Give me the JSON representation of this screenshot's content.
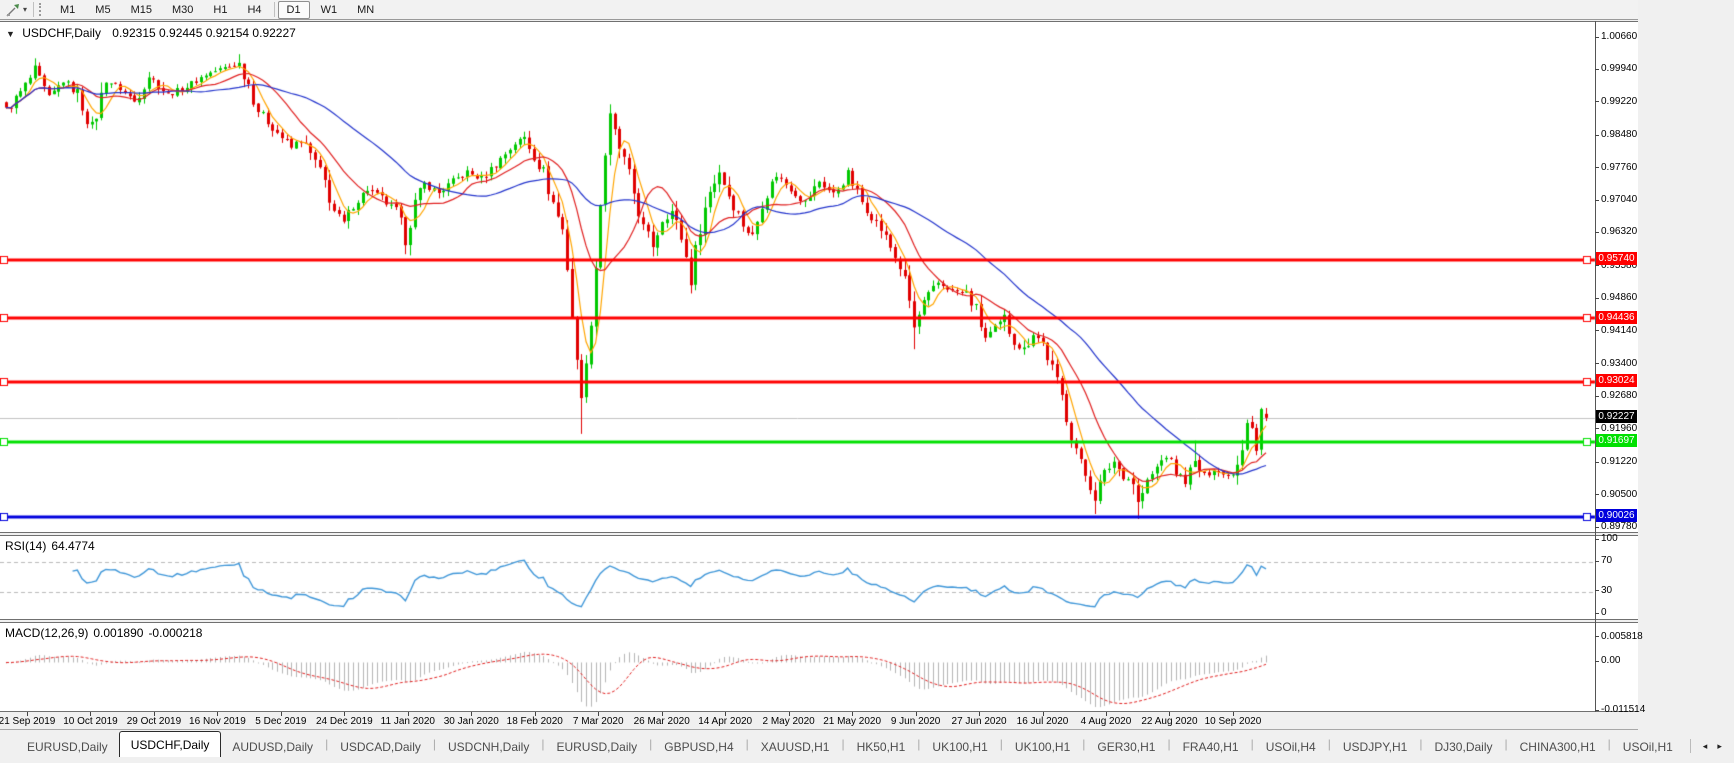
{
  "toolbar": {
    "periods": [
      "M1",
      "M5",
      "M15",
      "M30",
      "H1",
      "H4",
      "D1",
      "W1",
      "MN"
    ],
    "active_period": "D1",
    "separator_before": "D1"
  },
  "icons": {
    "dropdown_caret": "▾",
    "collapse_arrow": "▼",
    "tab_scroll_left": "◂",
    "tab_scroll_right": "▸"
  },
  "main_title": {
    "symbol": "USDCHF,Daily",
    "ohlc_text": "0.92315 0.92445 0.92154 0.92227"
  },
  "rsi_header": {
    "label": "RSI(14)",
    "value": "64.4774"
  },
  "macd_header": {
    "label": "MACD(12,26,9)",
    "value1": "0.001890",
    "value2": "-0.000218"
  },
  "tabs": {
    "items": [
      {
        "label": "EURUSD,Daily",
        "active": false
      },
      {
        "label": "USDCHF,Daily",
        "active": true
      },
      {
        "label": "AUDUSD,Daily",
        "active": false
      },
      {
        "label": "USDCAD,Daily",
        "active": false
      },
      {
        "label": "USDCNH,Daily",
        "active": false
      },
      {
        "label": "EURUSD,Daily",
        "active": false
      },
      {
        "label": "GBPUSD,H4",
        "active": false
      },
      {
        "label": "XAUUSD,H1",
        "active": false
      },
      {
        "label": "HK50,H1",
        "active": false
      },
      {
        "label": "UK100,H1",
        "active": false
      },
      {
        "label": "UK100,H1",
        "active": false
      },
      {
        "label": "GER30,H1",
        "active": false
      },
      {
        "label": "FRA40,H1",
        "active": false
      },
      {
        "label": "USOil,H4",
        "active": false
      },
      {
        "label": "USDJPY,H1",
        "active": false
      },
      {
        "label": "DJ30,Daily",
        "active": false
      },
      {
        "label": "CHINA300,H1",
        "active": false
      },
      {
        "label": "USOil,H1",
        "active": false
      }
    ]
  },
  "chart_data": [
    {
      "type": "candlestick",
      "title": "USDCHF,Daily",
      "ohlc_current": {
        "open": 0.92315,
        "high": 0.92445,
        "low": 0.92154,
        "close": 0.92227
      },
      "ylim": [
        0.8978,
        1.0066
      ],
      "y_ticks": [
        "1.00660",
        "0.99940",
        "0.99220",
        "0.98480",
        "0.97760",
        "0.97040",
        "0.96320",
        "0.95580",
        "0.94860",
        "0.94140",
        "0.93400",
        "0.92680",
        "0.91960",
        "0.91220",
        "0.90500",
        "0.89780"
      ],
      "x_tick_labels": [
        "21 Sep 2019",
        "10 Oct 2019",
        "29 Oct 2019",
        "16 Nov 2019",
        "5 Dec 2019",
        "24 Dec 2019",
        "11 Jan 2020",
        "30 Jan 2020",
        "18 Feb 2020",
        "7 Mar 2020",
        "26 Mar 2020",
        "14 Apr 2020",
        "2 May 2020",
        "21 May 2020",
        "9 Jun 2020",
        "27 Jun 2020",
        "16 Jul 2020",
        "4 Aug 2020",
        "22 Aug 2020",
        "10 Sep 2020"
      ],
      "bars_total": 266,
      "close_path_keyframes": [
        [
          0,
          0.9905
        ],
        [
          3,
          0.9945
        ],
        [
          6,
          0.9992
        ],
        [
          9,
          0.993
        ],
        [
          12,
          0.9972
        ],
        [
          15,
          0.9942
        ],
        [
          18,
          0.9862
        ],
        [
          21,
          0.9972
        ],
        [
          24,
          0.9955
        ],
        [
          27,
          0.9925
        ],
        [
          30,
          0.9982
        ],
        [
          34,
          0.994
        ],
        [
          38,
          0.9958
        ],
        [
          42,
          0.9985
        ],
        [
          46,
          1.0
        ],
        [
          49,
          1.0008
        ],
        [
          51,
          0.9965
        ],
        [
          53,
          0.9905
        ],
        [
          56,
          0.9868
        ],
        [
          58,
          0.9845
        ],
        [
          60,
          0.9822
        ],
        [
          62,
          0.9842
        ],
        [
          65,
          0.979
        ],
        [
          67,
          0.9745
        ],
        [
          69,
          0.9682
        ],
        [
          71,
          0.9652
        ],
        [
          73,
          0.9695
        ],
        [
          76,
          0.973
        ],
        [
          79,
          0.971
        ],
        [
          82,
          0.9678
        ],
        [
          84,
          0.9625
        ],
        [
          86,
          0.97
        ],
        [
          88,
          0.9742
        ],
        [
          91,
          0.9722
        ],
        [
          94,
          0.9748
        ],
        [
          97,
          0.9768
        ],
        [
          100,
          0.9752
        ],
        [
          104,
          0.9798
        ],
        [
          107,
          0.9832
        ],
        [
          109,
          0.9845
        ],
        [
          111,
          0.9805
        ],
        [
          113,
          0.9765
        ],
        [
          115,
          0.97
        ],
        [
          117,
          0.964
        ],
        [
          118,
          0.956
        ],
        [
          119,
          0.945
        ],
        [
          120,
          0.934
        ],
        [
          121,
          0.9285
        ],
        [
          122,
          0.933
        ],
        [
          123,
          0.9445
        ],
        [
          124,
          0.956
        ],
        [
          125,
          0.97
        ],
        [
          126,
          0.981
        ],
        [
          127,
          0.9885
        ],
        [
          128,
          0.9852
        ],
        [
          130,
          0.979
        ],
        [
          132,
          0.9722
        ],
        [
          134,
          0.9645
        ],
        [
          136,
          0.9608
        ],
        [
          138,
          0.9662
        ],
        [
          140,
          0.968
        ],
        [
          142,
          0.9625
        ],
        [
          144,
          0.9532
        ],
        [
          146,
          0.965
        ],
        [
          148,
          0.9725
        ],
        [
          150,
          0.9772
        ],
        [
          152,
          0.9718
        ],
        [
          155,
          0.9652
        ],
        [
          157,
          0.9622
        ],
        [
          159,
          0.97
        ],
        [
          162,
          0.9762
        ],
        [
          165,
          0.9732
        ],
        [
          168,
          0.97
        ],
        [
          171,
          0.9748
        ],
        [
          174,
          0.9718
        ],
        [
          177,
          0.9762
        ],
        [
          180,
          0.9702
        ],
        [
          184,
          0.9642
        ],
        [
          188,
          0.956
        ],
        [
          190,
          0.9482
        ],
        [
          191,
          0.942
        ],
        [
          193,
          0.9478
        ],
        [
          196,
          0.9522
        ],
        [
          199,
          0.9506
        ],
        [
          202,
          0.9498
        ],
        [
          204,
          0.946
        ],
        [
          206,
          0.94
        ],
        [
          208,
          0.942
        ],
        [
          210,
          0.9442
        ],
        [
          212,
          0.9392
        ],
        [
          214,
          0.9372
        ],
        [
          216,
          0.9412
        ],
        [
          218,
          0.9388
        ],
        [
          220,
          0.933
        ],
        [
          222,
          0.9268
        ],
        [
          224,
          0.919
        ],
        [
          226,
          0.912
        ],
        [
          228,
          0.9072
        ],
        [
          229,
          0.905
        ],
        [
          231,
          0.91
        ],
        [
          233,
          0.9126
        ],
        [
          235,
          0.9092
        ],
        [
          237,
          0.9082
        ],
        [
          238,
          0.9032
        ],
        [
          240,
          0.908
        ],
        [
          242,
          0.9112
        ],
        [
          244,
          0.9142
        ],
        [
          246,
          0.91
        ],
        [
          248,
          0.9086
        ],
        [
          250,
          0.9122
        ],
        [
          252,
          0.9092
        ],
        [
          254,
          0.9112
        ],
        [
          256,
          0.9096
        ],
        [
          258,
          0.91
        ],
        [
          260,
          0.9162
        ],
        [
          261,
          0.9216
        ],
        [
          262,
          0.9209
        ],
        [
          263,
          0.9149
        ],
        [
          264,
          0.9242
        ],
        [
          265,
          0.92227
        ]
      ],
      "wick_extremes": [
        {
          "bar": 49,
          "type": "high",
          "price": 1.003
        },
        {
          "bar": 84,
          "type": "low",
          "price": 0.962
        },
        {
          "bar": 121,
          "type": "low",
          "price": 0.9187
        },
        {
          "bar": 127,
          "type": "high",
          "price": 0.9902
        },
        {
          "bar": 191,
          "type": "low",
          "price": 0.9375
        },
        {
          "bar": 229,
          "type": "low",
          "price": 0.9009
        },
        {
          "bar": 238,
          "type": "low",
          "price": 0.8998
        },
        {
          "bar": 250,
          "type": "high",
          "price": 0.9172
        }
      ],
      "last_bars": [
        {
          "bar": 264,
          "o": 0.9152,
          "h": 0.9245,
          "l": 0.914,
          "c": 0.9242
        },
        {
          "bar": 265,
          "o": 0.92315,
          "h": 0.92445,
          "l": 0.92154,
          "c": 0.92227
        }
      ],
      "horizontal_lines": [
        {
          "price": 0.9574,
          "label": "0.95740",
          "color": "#ff0000"
        },
        {
          "price": 0.94436,
          "label": "0.94436",
          "color": "#ff0000"
        },
        {
          "price": 0.93024,
          "label": "0.93024",
          "color": "#ff0000"
        },
        {
          "price": 0.91697,
          "label": "0.91697",
          "color": "#00e000"
        },
        {
          "price": 0.90026,
          "label": "0.90026",
          "color": "#0000dd"
        }
      ],
      "current_price": {
        "price": 0.92227,
        "label": "0.92227",
        "line_color": "#c0c0c0",
        "badge_color": "#000000"
      },
      "moving_averages": [
        {
          "period": 5,
          "color": "#ffa500"
        },
        {
          "period": 13,
          "color": "#e02020"
        },
        {
          "period": 34,
          "color": "#2233cc"
        }
      ],
      "candle_colors": {
        "up": "#00c800",
        "down": "#e00000"
      }
    },
    {
      "type": "line",
      "indicator": "RSI",
      "period": 14,
      "current_value": 64.4774,
      "levels": [
        70,
        30
      ],
      "axis_ticks": [
        100,
        70,
        30,
        0
      ],
      "ylim": [
        0,
        100
      ],
      "color": "#3e96d8",
      "level_line_color": "#b8b8b8"
    },
    {
      "type": "macd_histogram",
      "indicator": "MACD",
      "fast": 12,
      "slow": 26,
      "signal": 9,
      "macd_value": 0.00189,
      "signal_value": -0.000218,
      "axis_ticks": [
        {
          "label": "0.005818",
          "value": 0.005818
        },
        {
          "label": "0.00",
          "value": 0.0
        },
        {
          "label": "-0.011514",
          "value": -0.011514
        }
      ],
      "ylim": [
        -0.0115,
        0.0058
      ],
      "histogram_color": "#b4b4b4",
      "signal_color": "#e02020"
    }
  ]
}
